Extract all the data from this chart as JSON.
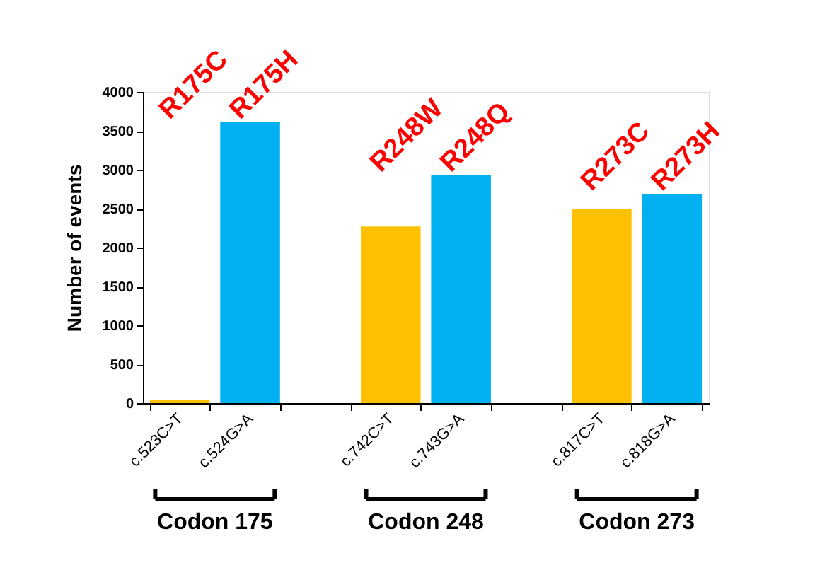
{
  "chart_data": {
    "type": "bar",
    "ylabel": "Number of events",
    "categories": [
      "c.523C>T",
      "c.524G>A",
      null,
      "c.742C>T",
      "c.743G>A",
      null,
      "c.817C>T",
      "c.818G>A"
    ],
    "values": [
      40,
      3610,
      null,
      2270,
      2930,
      null,
      2490,
      2690
    ],
    "colors": [
      "#ffc000",
      "#00b0f0",
      null,
      "#ffc000",
      "#00b0f0",
      null,
      "#ffc000",
      "#00b0f0"
    ],
    "ylim": [
      0,
      4000
    ],
    "yticks": [
      0,
      500,
      1000,
      1500,
      2000,
      2500,
      3000,
      3500,
      4000
    ],
    "grid": false,
    "annotations": [
      "R175C",
      "R175H",
      "R248W",
      "R248Q",
      "R273C",
      "R273H",
      "Codon  175",
      "Codon  248",
      "Codon  273"
    ]
  }
}
